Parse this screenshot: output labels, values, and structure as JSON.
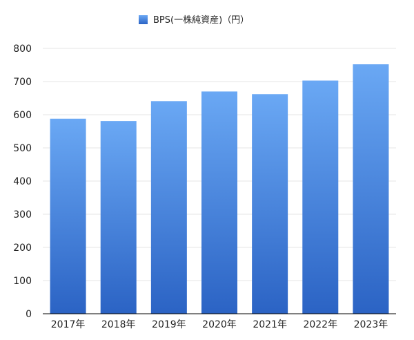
{
  "chart_data": {
    "type": "bar",
    "categories": [
      "2017年",
      "2018年",
      "2019年",
      "2020年",
      "2021年",
      "2022年",
      "2023年"
    ],
    "series": [
      {
        "name": "BPS(一株純資産)（円）",
        "values": [
          588,
          581,
          641,
          670,
          662,
          703,
          752
        ]
      }
    ],
    "ylim": [
      0,
      800
    ],
    "yticks": [
      0,
      100,
      200,
      300,
      400,
      500,
      600,
      700,
      800
    ],
    "grid": true,
    "legend": "top-center",
    "colors": {
      "bar_top": "#6aa8f4",
      "bar_bottom": "#2b63c4",
      "grid": "#e6e6e6",
      "axis": "#000000"
    }
  }
}
